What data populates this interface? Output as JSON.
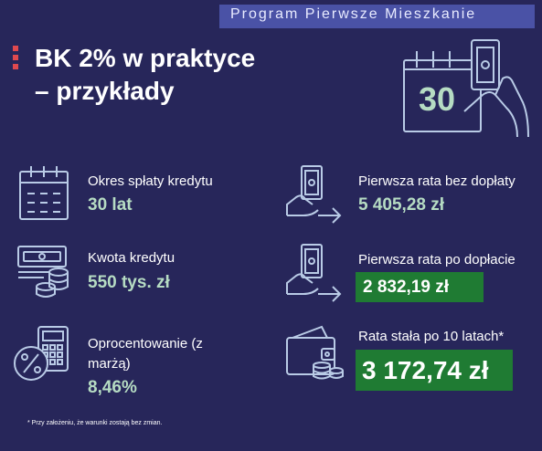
{
  "header": {
    "program": "Program Pierwsze Mieszkanie"
  },
  "title": {
    "line1": "BK 2% w praktyce",
    "line2": "– przykłady"
  },
  "calendar_badge": "30",
  "left": [
    {
      "label": "Okres spłaty kredytu",
      "value": "30 lat"
    },
    {
      "label": "Kwota kredytu",
      "value": "550 tys. zł"
    },
    {
      "label_line1": "Oprocentowanie (z",
      "label_line2": "marżą)",
      "value": "8,46%"
    }
  ],
  "right": [
    {
      "label": "Pierwsza rata bez dopłaty",
      "value": "5 405,28 zł"
    },
    {
      "label": "Pierwsza rata po dopłacie",
      "value": "2 832,19 zł"
    },
    {
      "label": "Rata stała po 10 latach*",
      "value": "3 172,74 zł"
    }
  ],
  "footnote": "* Przy założeniu, że warunki zostają bez zmian.",
  "colors": {
    "background": "#27265a",
    "banner": "#4a52a6",
    "accent": "#e0494f",
    "value_text": "#b6dcc3",
    "highlight": "#1f7b33"
  }
}
